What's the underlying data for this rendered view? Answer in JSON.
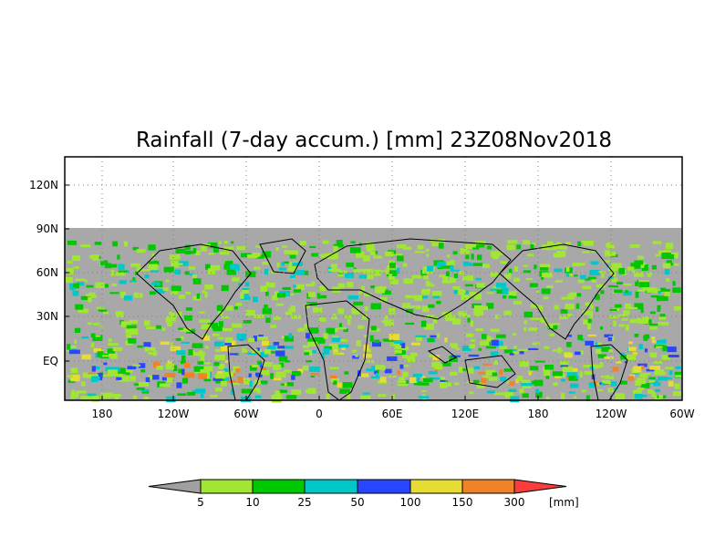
{
  "map": {
    "title": "Rainfall (7-day accum.) [mm] 23Z08Nov2018",
    "lat_ticks": [
      "120N",
      "90N",
      "60N",
      "30N",
      "EQ"
    ],
    "lon_ticks": [
      "180",
      "120W",
      "60W",
      "0",
      "60E",
      "120E",
      "180",
      "120W",
      "60W"
    ],
    "no_data_color": "#a8a8a8",
    "coastline_color": "#000000"
  },
  "colorbar": {
    "unit_label": "[mm]",
    "tick_labels": [
      "5",
      "10",
      "25",
      "50",
      "100",
      "150",
      "300"
    ],
    "colors": [
      "#a0a0a0",
      "#a0e632",
      "#00c800",
      "#00c8c8",
      "#2846ff",
      "#e6dc32",
      "#f08228",
      "#fa3c3c"
    ]
  }
}
